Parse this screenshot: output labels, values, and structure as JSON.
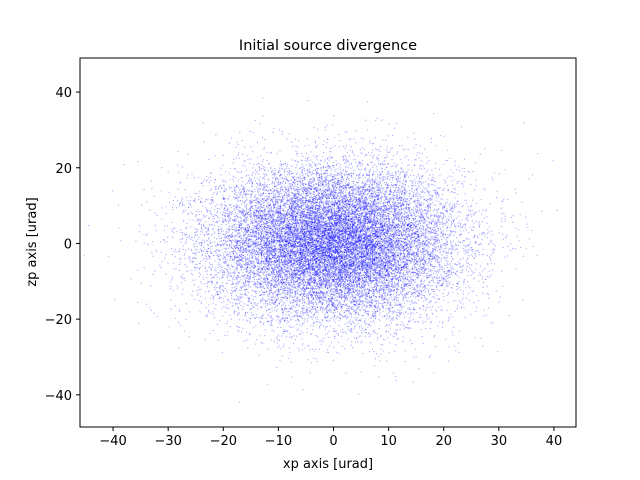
{
  "chart_data": {
    "type": "scatter",
    "title": "Initial source divergence",
    "xlabel": "xp axis [urad]",
    "ylabel": "zp axis [urad]",
    "xlim": [
      -46,
      44
    ],
    "ylim": [
      -48.5,
      49
    ],
    "xticks": [
      -40,
      -30,
      -20,
      -10,
      0,
      10,
      20,
      30,
      40
    ],
    "yticks": [
      -40,
      -20,
      0,
      20,
      40
    ],
    "xtick_labels": [
      "−40",
      "−30",
      "−20",
      "−10",
      "0",
      "10",
      "20",
      "30",
      "40"
    ],
    "ytick_labels": [
      "−40",
      "−20",
      "0",
      "20",
      "40"
    ],
    "grid": false,
    "legend": "none",
    "marker_color": "#0000ff",
    "distribution": {
      "shape": "gaussian",
      "x_mean": 0,
      "x_std": 11,
      "y_mean": 0,
      "y_std": 10,
      "count": 20000
    }
  }
}
